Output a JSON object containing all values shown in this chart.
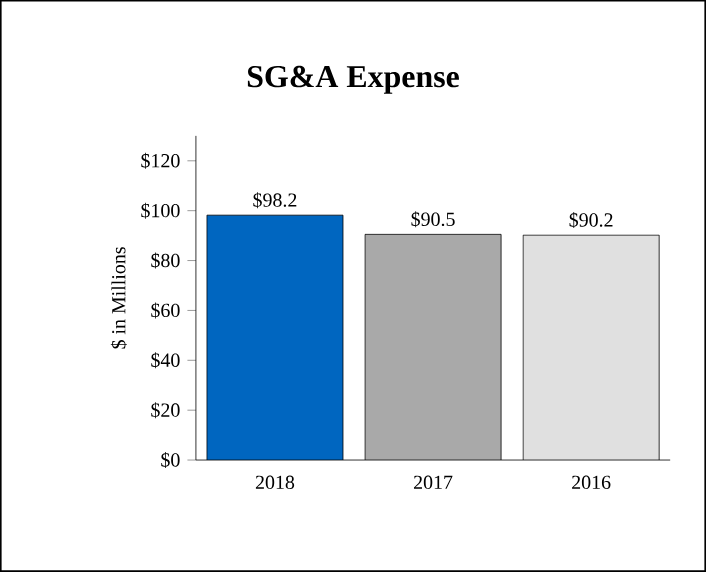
{
  "chart_data": {
    "type": "bar",
    "title": "SG&A Expense",
    "ylabel": "$ in Millions",
    "categories": [
      "2018",
      "2017",
      "2016"
    ],
    "values": [
      98.2,
      90.5,
      90.2
    ],
    "colors": [
      "#0066c0",
      "#a9a9a9",
      "#e0e0e0"
    ],
    "value_labels": [
      "$98.2",
      "$90.5",
      "$90.2"
    ],
    "ylim": [
      0,
      130
    ],
    "yticks": [
      {
        "value": 0,
        "label": "$0"
      },
      {
        "value": 20,
        "label": "$20"
      },
      {
        "value": 40,
        "label": "$40"
      },
      {
        "value": 60,
        "label": "$60"
      },
      {
        "value": 80,
        "label": "$80"
      },
      {
        "value": 100,
        "label": "$100"
      },
      {
        "value": 120,
        "label": "$120"
      }
    ],
    "grid": false
  }
}
